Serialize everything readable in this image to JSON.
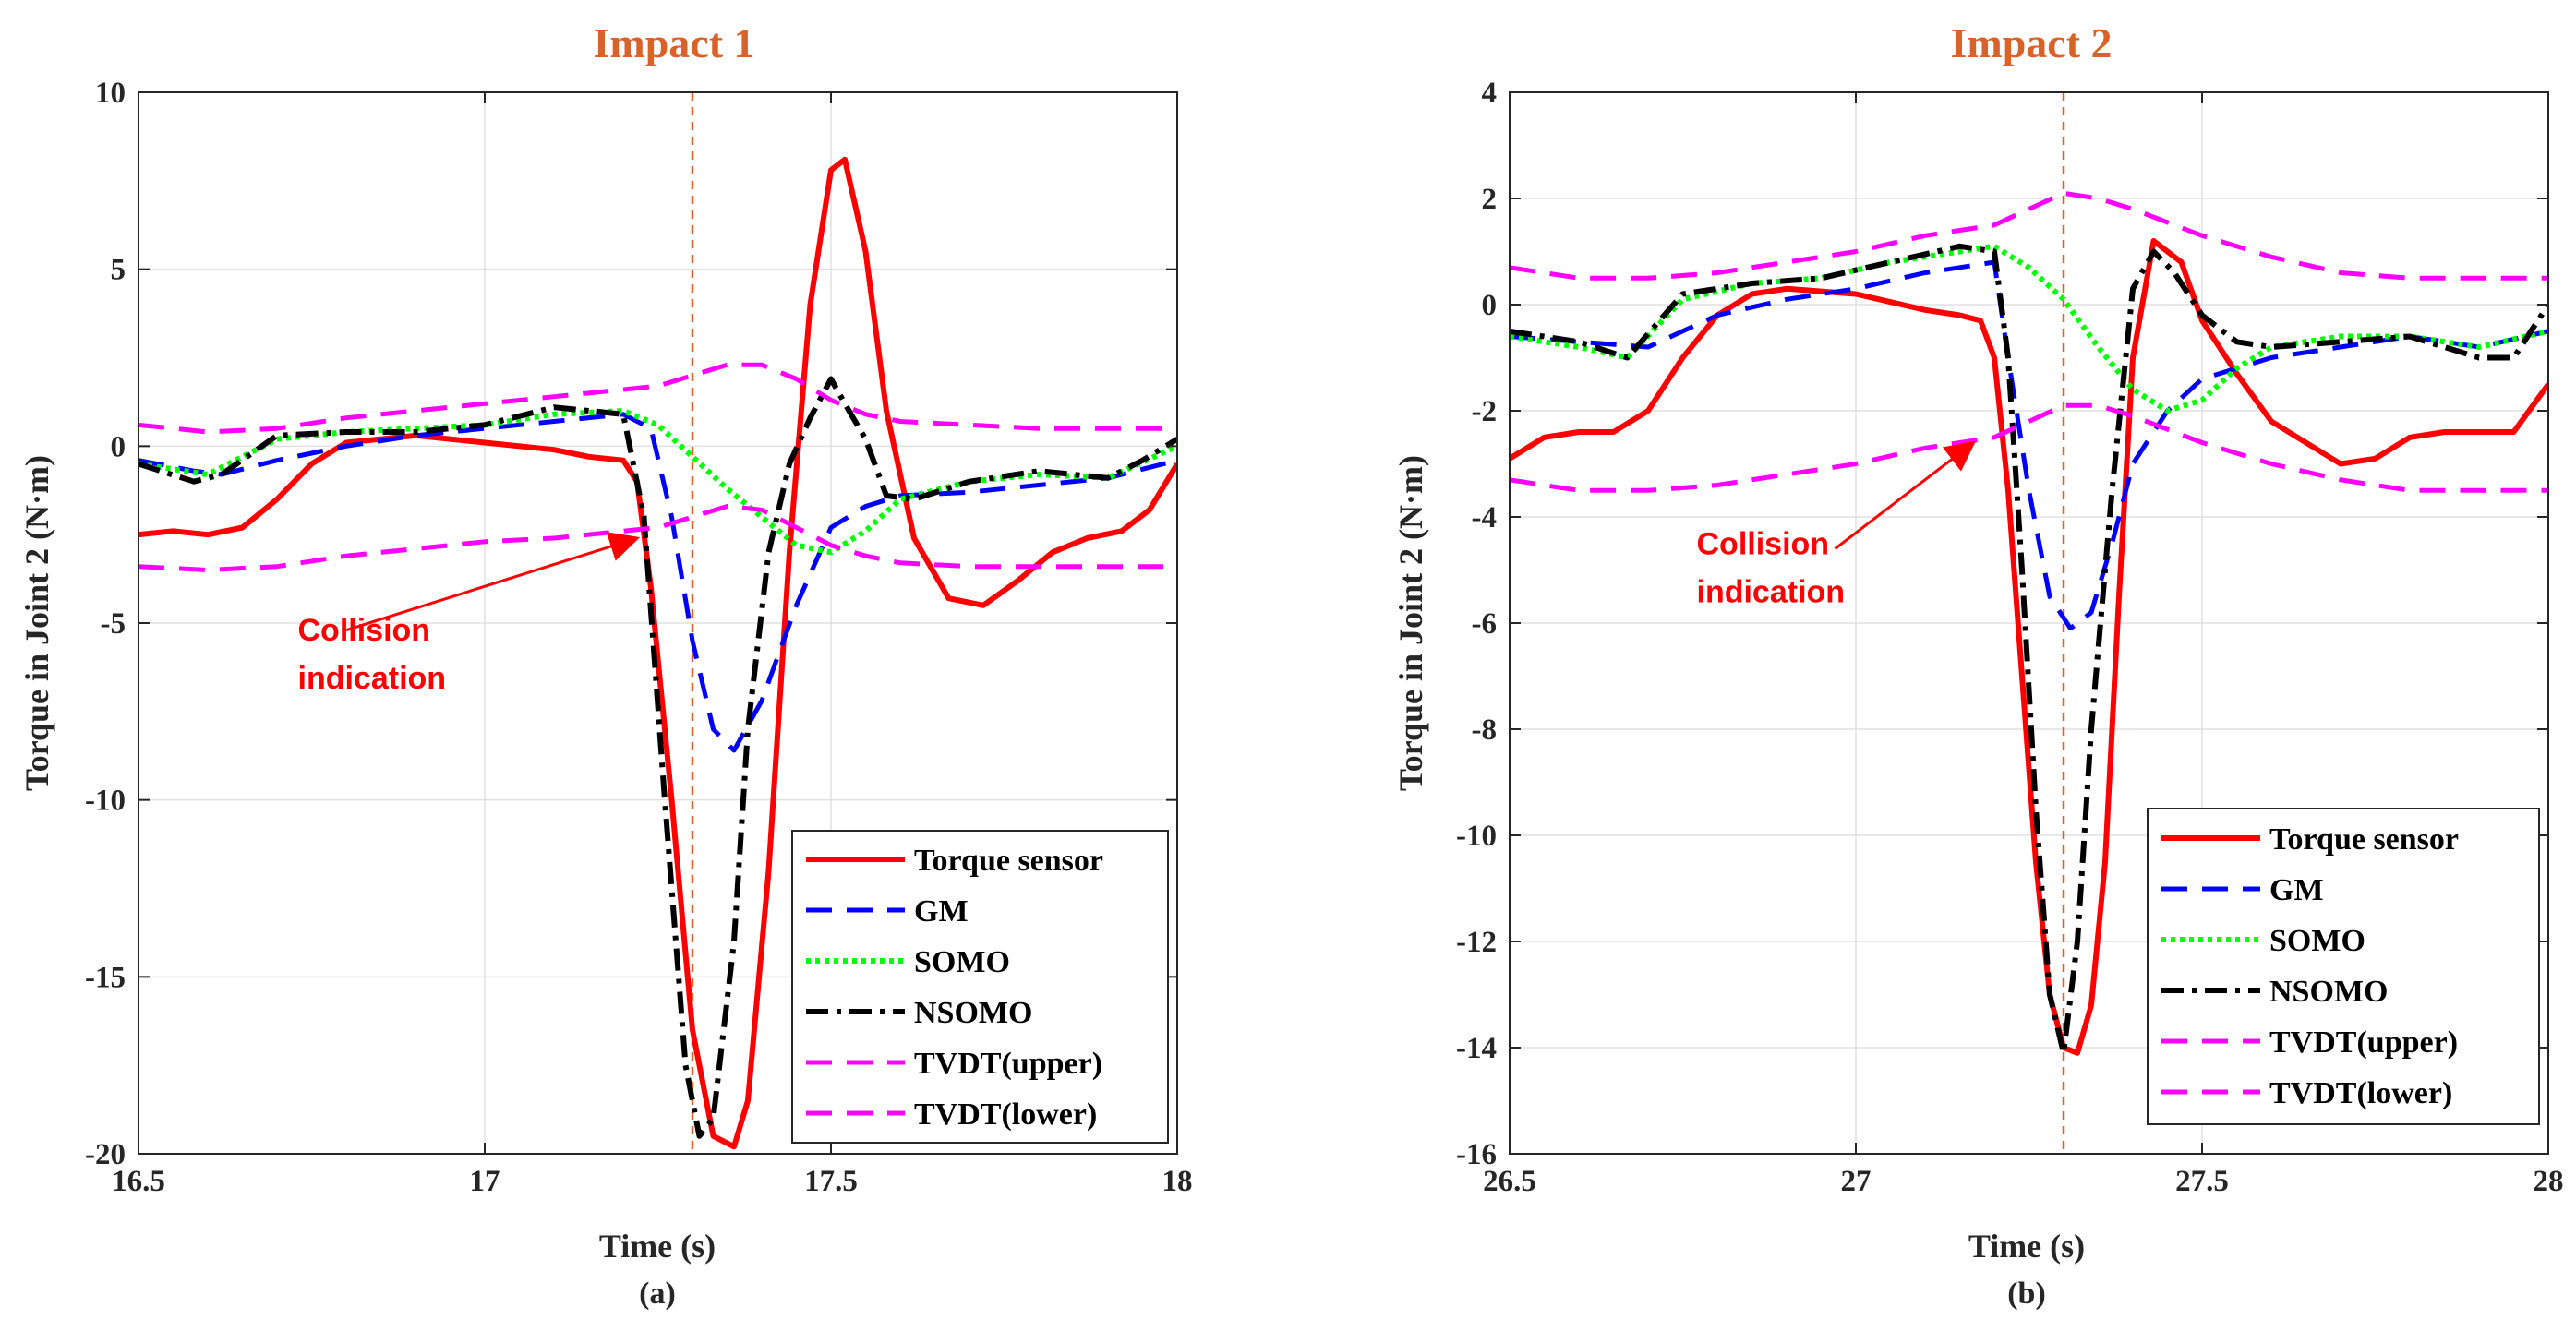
{
  "colors": {
    "title": "#D9622B",
    "torque_sensor": "#FF0000",
    "gm": "#0000FF",
    "somo": "#00FF00",
    "nsomo": "#000000",
    "tvdt": "#FF00FF",
    "collision_line": "#D9622B",
    "annotation": "#FF0000",
    "grid": "#E0E0E0"
  },
  "chart_data": [
    {
      "type": "line",
      "title": "Impact 1",
      "panel_label": "(a)",
      "xlabel": "Time (s)",
      "ylabel": "Torque in Joint 2 (N·m)",
      "xlim": [
        16.5,
        18
      ],
      "ylim": [
        -20,
        10
      ],
      "xticks": [
        16.5,
        17,
        17.5,
        18
      ],
      "xtick_labels": [
        "16.5",
        "17",
        "17.5",
        "18"
      ],
      "yticks": [
        -20,
        -15,
        -10,
        -5,
        0,
        5,
        10
      ],
      "ytick_labels": [
        "-20",
        "-15",
        "-10",
        "-5",
        "0",
        "5",
        "10"
      ],
      "grid": true,
      "collision_time": 17.3,
      "annotation": {
        "lines": [
          "Collision",
          "indication"
        ],
        "text_at": [
          16.73,
          -5.5
        ],
        "arrow_from": [
          16.8,
          -5.2
        ],
        "arrow_to": [
          17.22,
          -2.6
        ]
      },
      "legend": {
        "location": "bottom-right",
        "entries": [
          "Torque sensor",
          "GM",
          "SOMO",
          "NSOMO",
          "TVDT(upper)",
          "TVDT(lower)"
        ]
      },
      "series": [
        {
          "name": "Torque sensor",
          "x": [
            16.5,
            16.55,
            16.6,
            16.65,
            16.7,
            16.75,
            16.8,
            16.9,
            17.0,
            17.1,
            17.15,
            17.2,
            17.22,
            17.24,
            17.27,
            17.3,
            17.33,
            17.36,
            17.38,
            17.41,
            17.44,
            17.47,
            17.5,
            17.52,
            17.55,
            17.58,
            17.62,
            17.67,
            17.72,
            17.77,
            17.82,
            17.87,
            17.92,
            17.96,
            18.0
          ],
          "y": [
            -2.5,
            -2.4,
            -2.5,
            -2.3,
            -1.5,
            -0.5,
            0.1,
            0.3,
            0.1,
            -0.1,
            -0.3,
            -0.4,
            -1.0,
            -4.0,
            -10.0,
            -16.5,
            -19.5,
            -19.8,
            -18.5,
            -12.0,
            -3.0,
            4.0,
            7.8,
            8.1,
            5.5,
            1.0,
            -2.6,
            -4.3,
            -4.5,
            -3.8,
            -3.0,
            -2.6,
            -2.4,
            -1.8,
            -0.5
          ]
        },
        {
          "name": "GM",
          "x": [
            16.5,
            16.58,
            16.62,
            16.7,
            16.8,
            16.9,
            17.0,
            17.1,
            17.2,
            17.24,
            17.27,
            17.3,
            17.33,
            17.36,
            17.4,
            17.45,
            17.5,
            17.55,
            17.6,
            17.7,
            17.8,
            17.9,
            18.0
          ],
          "y": [
            -0.4,
            -0.7,
            -0.8,
            -0.4,
            0.0,
            0.3,
            0.5,
            0.7,
            0.9,
            0.5,
            -2.0,
            -5.5,
            -8.0,
            -8.6,
            -7.2,
            -4.5,
            -2.3,
            -1.7,
            -1.4,
            -1.3,
            -1.1,
            -0.9,
            -0.4
          ]
        },
        {
          "name": "SOMO",
          "x": [
            16.5,
            16.6,
            16.7,
            16.8,
            16.9,
            17.0,
            17.1,
            17.2,
            17.25,
            17.3,
            17.35,
            17.4,
            17.45,
            17.5,
            17.55,
            17.6,
            17.7,
            17.8,
            17.9,
            18.0
          ],
          "y": [
            -0.5,
            -0.8,
            0.2,
            0.4,
            0.5,
            0.6,
            0.9,
            1.0,
            0.6,
            -0.3,
            -1.2,
            -2.0,
            -2.8,
            -3.0,
            -2.4,
            -1.5,
            -1.0,
            -0.8,
            -0.9,
            0.0
          ]
        },
        {
          "name": "NSOMO",
          "x": [
            16.5,
            16.58,
            16.62,
            16.7,
            16.8,
            16.9,
            17.0,
            17.1,
            17.2,
            17.23,
            17.26,
            17.29,
            17.31,
            17.33,
            17.36,
            17.38,
            17.41,
            17.44,
            17.47,
            17.5,
            17.52,
            17.55,
            17.58,
            17.62,
            17.7,
            17.8,
            17.9,
            17.95,
            18.0
          ],
          "y": [
            -0.5,
            -1.0,
            -0.8,
            0.3,
            0.4,
            0.4,
            0.6,
            1.1,
            0.9,
            -2.0,
            -10.0,
            -17.5,
            -19.5,
            -19.0,
            -14.0,
            -8.0,
            -3.0,
            -0.5,
            0.8,
            1.9,
            1.2,
            0.2,
            -1.4,
            -1.5,
            -1.0,
            -0.7,
            -0.9,
            -0.4,
            0.2
          ]
        },
        {
          "name": "TVDT(upper)",
          "x": [
            16.5,
            16.6,
            16.7,
            16.8,
            16.9,
            17.0,
            17.1,
            17.2,
            17.25,
            17.3,
            17.35,
            17.4,
            17.45,
            17.5,
            17.55,
            17.6,
            17.7,
            17.8,
            17.9,
            18.0
          ],
          "y": [
            0.6,
            0.4,
            0.5,
            0.8,
            1.0,
            1.2,
            1.4,
            1.6,
            1.7,
            2.0,
            2.3,
            2.3,
            1.9,
            1.3,
            0.9,
            0.7,
            0.6,
            0.5,
            0.5,
            0.5
          ]
        },
        {
          "name": "TVDT(lower)",
          "x": [
            16.5,
            16.6,
            16.7,
            16.8,
            16.9,
            17.0,
            17.1,
            17.2,
            17.25,
            17.3,
            17.35,
            17.4,
            17.45,
            17.5,
            17.55,
            17.6,
            17.7,
            17.8,
            17.9,
            18.0
          ],
          "y": [
            -3.4,
            -3.5,
            -3.4,
            -3.1,
            -2.9,
            -2.7,
            -2.6,
            -2.4,
            -2.3,
            -2.0,
            -1.7,
            -1.8,
            -2.3,
            -2.8,
            -3.1,
            -3.3,
            -3.4,
            -3.4,
            -3.4,
            -3.4
          ]
        }
      ]
    },
    {
      "type": "line",
      "title": "Impact 2",
      "panel_label": "(b)",
      "xlabel": "Time (s)",
      "ylabel": "Torque in Joint 2 (N·m)",
      "xlim": [
        26.5,
        28
      ],
      "ylim": [
        -16,
        4
      ],
      "xticks": [
        26.5,
        27,
        27.5,
        28
      ],
      "xtick_labels": [
        "26.5",
        "27",
        "27.5",
        "28"
      ],
      "yticks": [
        -16,
        -14,
        -12,
        -10,
        -8,
        -6,
        -4,
        -2,
        0,
        2,
        4
      ],
      "ytick_labels": [
        "-16",
        "-14",
        "-12",
        "-10",
        "-8",
        "-6",
        "-4",
        "-2",
        "0",
        "2",
        "4"
      ],
      "grid": true,
      "collision_time": 27.3,
      "annotation": {
        "lines": [
          "Collision",
          "indication"
        ],
        "text_at": [
          26.77,
          -4.7
        ],
        "arrow_from": [
          26.97,
          -4.6
        ],
        "arrow_to": [
          27.17,
          -2.6
        ]
      },
      "legend": {
        "location": "bottom-right",
        "entries": [
          "Torque sensor",
          "GM",
          "SOMO",
          "NSOMO",
          "TVDT(upper)",
          "TVDT(lower)"
        ]
      },
      "series": [
        {
          "name": "Torque sensor",
          "x": [
            26.5,
            26.55,
            26.6,
            26.65,
            26.7,
            26.75,
            26.8,
            26.85,
            26.9,
            27.0,
            27.1,
            27.15,
            27.18,
            27.2,
            27.22,
            27.24,
            27.26,
            27.28,
            27.3,
            27.32,
            27.34,
            27.36,
            27.38,
            27.4,
            27.43,
            27.47,
            27.5,
            27.55,
            27.6,
            27.7,
            27.75,
            27.8,
            27.85,
            27.9,
            27.95,
            28.0
          ],
          "y": [
            -2.9,
            -2.5,
            -2.4,
            -2.4,
            -2.0,
            -1.0,
            -0.2,
            0.2,
            0.3,
            0.2,
            -0.1,
            -0.2,
            -0.3,
            -1.0,
            -3.5,
            -7.0,
            -10.5,
            -13.0,
            -14.0,
            -14.1,
            -13.2,
            -10.5,
            -5.5,
            -1.0,
            1.2,
            0.8,
            -0.3,
            -1.3,
            -2.2,
            -3.0,
            -2.9,
            -2.5,
            -2.4,
            -2.4,
            -2.4,
            -1.5
          ]
        },
        {
          "name": "GM",
          "x": [
            26.5,
            26.6,
            26.7,
            26.8,
            26.9,
            27.0,
            27.1,
            27.15,
            27.2,
            27.22,
            27.25,
            27.28,
            27.31,
            27.34,
            27.37,
            27.4,
            27.45,
            27.5,
            27.55,
            27.6,
            27.7,
            27.8,
            27.9,
            28.0
          ],
          "y": [
            -0.6,
            -0.7,
            -0.8,
            -0.2,
            0.1,
            0.3,
            0.6,
            0.7,
            0.8,
            -1.0,
            -3.5,
            -5.5,
            -6.1,
            -5.8,
            -4.5,
            -3.0,
            -2.0,
            -1.4,
            -1.2,
            -1.0,
            -0.8,
            -0.6,
            -0.8,
            -0.5
          ]
        },
        {
          "name": "SOMO",
          "x": [
            26.5,
            26.6,
            26.67,
            26.75,
            26.85,
            26.95,
            27.05,
            27.15,
            27.2,
            27.25,
            27.3,
            27.35,
            27.4,
            27.45,
            27.5,
            27.55,
            27.6,
            27.7,
            27.8,
            27.9,
            28.0
          ],
          "y": [
            -0.6,
            -0.8,
            -1.0,
            0.1,
            0.4,
            0.5,
            0.8,
            1.0,
            1.1,
            0.7,
            0.1,
            -0.8,
            -1.6,
            -2.0,
            -1.8,
            -1.2,
            -0.8,
            -0.6,
            -0.6,
            -0.8,
            -0.5
          ]
        },
        {
          "name": "NSOMO",
          "x": [
            26.5,
            26.6,
            26.67,
            26.75,
            26.85,
            26.95,
            27.05,
            27.15,
            27.2,
            27.22,
            27.24,
            27.26,
            27.28,
            27.3,
            27.32,
            27.34,
            27.37,
            27.4,
            27.43,
            27.46,
            27.5,
            27.55,
            27.6,
            27.7,
            27.8,
            27.9,
            27.95,
            28.0
          ],
          "y": [
            -0.5,
            -0.7,
            -1.0,
            0.2,
            0.4,
            0.5,
            0.8,
            1.1,
            1.0,
            -1.0,
            -5.0,
            -9.5,
            -13.0,
            -14.1,
            -12.0,
            -8.0,
            -3.5,
            0.3,
            1.0,
            0.6,
            -0.2,
            -0.7,
            -0.8,
            -0.7,
            -0.6,
            -1.0,
            -1.0,
            0.0
          ]
        },
        {
          "name": "TVDT(upper)",
          "x": [
            26.5,
            26.6,
            26.7,
            26.8,
            26.9,
            27.0,
            27.1,
            27.2,
            27.25,
            27.3,
            27.35,
            27.4,
            27.5,
            27.6,
            27.7,
            27.8,
            27.9,
            28.0
          ],
          "y": [
            0.7,
            0.5,
            0.5,
            0.6,
            0.8,
            1.0,
            1.3,
            1.5,
            1.8,
            2.1,
            2.0,
            1.8,
            1.3,
            0.9,
            0.6,
            0.5,
            0.5,
            0.5
          ]
        },
        {
          "name": "TVDT(lower)",
          "x": [
            26.5,
            26.6,
            26.7,
            26.8,
            26.9,
            27.0,
            27.1,
            27.2,
            27.25,
            27.3,
            27.35,
            27.4,
            27.5,
            27.6,
            27.7,
            27.8,
            27.9,
            28.0
          ],
          "y": [
            -3.3,
            -3.5,
            -3.5,
            -3.4,
            -3.2,
            -3.0,
            -2.7,
            -2.5,
            -2.2,
            -1.9,
            -1.9,
            -2.1,
            -2.6,
            -3.0,
            -3.3,
            -3.5,
            -3.5,
            -3.5
          ]
        }
      ]
    }
  ]
}
